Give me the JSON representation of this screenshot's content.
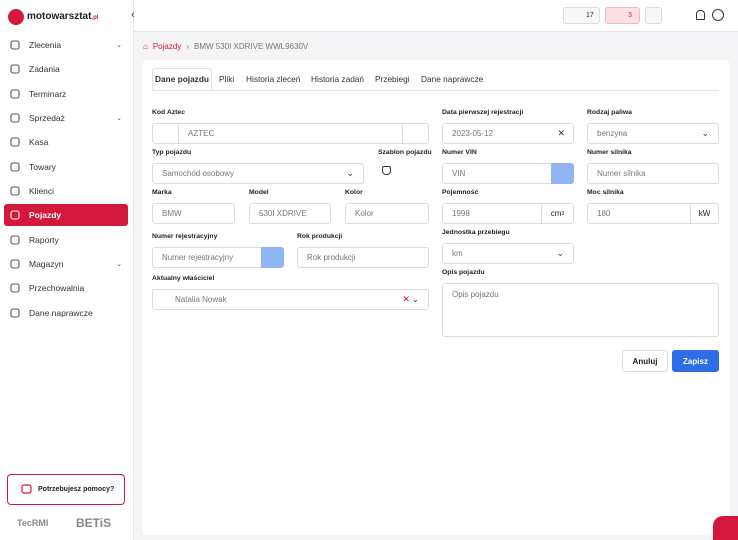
{
  "sidebar": {
    "logo": "motowarsztat",
    "logo_suffix": ".pl",
    "nav": [
      "Zlecenia",
      "Zadania",
      "Terminarz",
      "Sprzedaż",
      "Kasa",
      "Towary",
      "Klienci",
      "Pojazdy",
      "Raporty",
      "Magazyn",
      "Przechowalnia",
      "Dane naprawcze"
    ],
    "help": "Potrzebujesz pomocy?",
    "partners": [
      "TecRMI",
      "BETiS"
    ]
  },
  "topbar": {
    "badges": [
      17,
      3
    ]
  },
  "breadcrumb": [
    "Pojazdy",
    "BMW 530I XDRIVE WWL9630V"
  ],
  "tabs": [
    "Dane pojazdu",
    "Pliki",
    "Historia zleceń",
    "Historia zadań",
    "Przebiegi",
    "Dane naprawcze"
  ],
  "form": {
    "aztec": {
      "label": "Kod Aztec",
      "placeholder": "AZTEC"
    },
    "first_registration": {
      "label": "Data pierwszej rejestracji",
      "value": "2023-05-12"
    },
    "fuel": {
      "label": "Rodzaj paliwa",
      "value": "benzyna"
    },
    "vehicle_type": {
      "label": "Typ pojazdu",
      "value": "Samochód osobowy"
    },
    "template": {
      "label": "Szablon pojazdu"
    },
    "vin": {
      "label": "Numer VIN",
      "placeholder": "VIN"
    },
    "engine_no": {
      "label": "Numer silnika",
      "placeholder": "Numer silnika"
    },
    "make": {
      "label": "Marka",
      "value": "BMW"
    },
    "model": {
      "label": "Model",
      "value": "530I XDRIVE"
    },
    "color": {
      "label": "Kolor",
      "placeholder": "Kolor"
    },
    "capacity": {
      "label": "Pojemność",
      "value": "1998",
      "unit": "cm",
      "unit_sup": "3"
    },
    "power": {
      "label": "Moc silnika",
      "value": "180",
      "unit": "kW"
    },
    "registration_no": {
      "label": "Numer rejestracyjny",
      "placeholder": "Numer rejestracyjny"
    },
    "production_year": {
      "label": "Rok produkcji",
      "placeholder": "Rok produkcji"
    },
    "mileage_unit": {
      "label": "Jednostka przebiegu",
      "value": "km"
    },
    "owner": {
      "label": "Aktualny właściciel",
      "value": "Natalia Nowak"
    },
    "description": {
      "label": "Opis pojazdu",
      "placeholder": "Opis pojazdu"
    }
  },
  "buttons": {
    "cancel": "Anuluj",
    "save": "Zapisz"
  }
}
